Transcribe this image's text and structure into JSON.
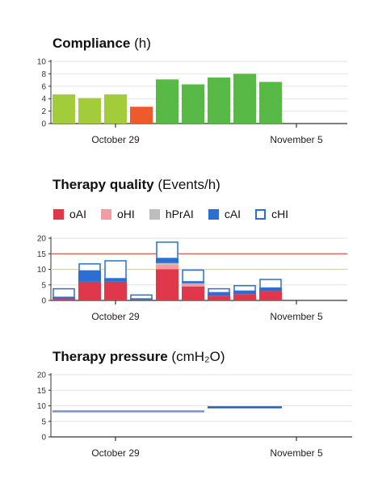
{
  "titles": {
    "compliance": {
      "bold": "Compliance",
      "unit": "(h)"
    },
    "quality": {
      "bold": "Therapy quality",
      "unit": "(Events/h)"
    },
    "pressure": {
      "bold": "Therapy pressure",
      "unit": "(cmH₂O)"
    }
  },
  "legend": [
    {
      "label": "oAI",
      "color": "#e0374a",
      "hollow": false
    },
    {
      "label": "oHI",
      "color": "#f59aa0",
      "hollow": false
    },
    {
      "label": "hPrAI",
      "color": "#bdbdbd",
      "hollow": false
    },
    {
      "label": "cAI",
      "color": "#2a6fd1",
      "hollow": false
    },
    {
      "label": "cHI",
      "color": "#2a6fd1",
      "hollow": true
    }
  ],
  "chart_data": [
    {
      "type": "bar",
      "title": "Compliance (h)",
      "x_tick_labels": [
        "October 29",
        "November 5"
      ],
      "x_tick_index": [
        2.5,
        9.5
      ],
      "slots": 12,
      "ylim": [
        0,
        10
      ],
      "yticks": [
        0,
        2,
        4,
        6,
        8,
        10
      ],
      "grid": true,
      "values": [
        4.7,
        4.1,
        4.7,
        2.7,
        7.1,
        6.3,
        7.4,
        8.0,
        6.7
      ],
      "colors": [
        "#a3cc3b",
        "#a3cc3b",
        "#a3cc3b",
        "#ee5a2a",
        "#58b947",
        "#58b947",
        "#58b947",
        "#58b947",
        "#58b947"
      ]
    },
    {
      "type": "bar",
      "stacked": true,
      "title": "Therapy quality (Events/h)",
      "x_tick_labels": [
        "October 29",
        "November 5"
      ],
      "x_tick_index": [
        2.5,
        9.5
      ],
      "slots": 12,
      "ylim": [
        0,
        20
      ],
      "yticks": [
        0,
        5,
        10,
        15,
        20
      ],
      "grid": true,
      "reference_lines": [
        {
          "value": 15,
          "color": "#e8504a"
        },
        {
          "value": 10,
          "color": "#f5d94a"
        }
      ],
      "series": [
        {
          "name": "oAI",
          "values": [
            0.5,
            6,
            6,
            0.5,
            10,
            4.5,
            1.5,
            2,
            3
          ]
        },
        {
          "name": "oHI",
          "values": [
            0,
            0,
            0,
            0,
            1.5,
            1,
            0,
            0,
            0
          ]
        },
        {
          "name": "hPrAI",
          "values": [
            0,
            0,
            0,
            0,
            0.5,
            0,
            0,
            0,
            0
          ]
        },
        {
          "name": "cAI",
          "values": [
            0.5,
            3.5,
            1,
            0,
            1.5,
            0.5,
            1,
            1,
            1
          ]
        },
        {
          "name": "cHI",
          "values": [
            3,
            2.5,
            6,
            1.5,
            5.5,
            4,
            1.5,
            2,
            3
          ]
        }
      ]
    },
    {
      "type": "line",
      "title": "Therapy pressure (cmH₂O)",
      "x_tick_labels": [
        "October 29",
        "November 5"
      ],
      "x_tick_index": [
        2.5,
        9.5
      ],
      "slots": 12,
      "ylim": [
        0,
        20
      ],
      "yticks": [
        0,
        5,
        10,
        15,
        20
      ],
      "grid": true,
      "segments": [
        {
          "from": 0,
          "to": 6,
          "value": 8.2,
          "color": "#7d8fd1"
        },
        {
          "from": 6,
          "to": 9,
          "value": 9.5,
          "color": "#1f5fb8"
        }
      ]
    }
  ]
}
